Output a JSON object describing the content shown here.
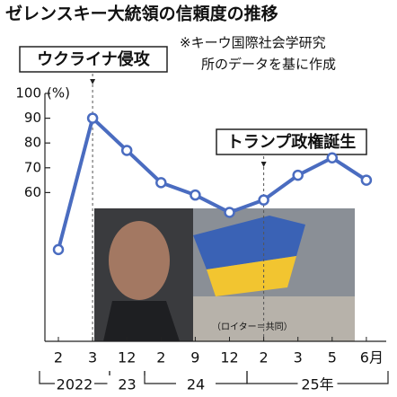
{
  "chart_data": {
    "type": "line",
    "title": "ゼレンスキー大統領の信頼度の推移",
    "note": [
      "※キーウ国際社会学研究",
      "所のデータを基に作成"
    ],
    "y_unit": "(%)",
    "annotations": [
      "ウクライナ侵攻",
      "トランプ政権誕生"
    ],
    "photo_credit": "（ロイター＝共同）",
    "categories": [
      "2",
      "3",
      "12",
      "2",
      "9",
      "12",
      "2",
      "3",
      "5",
      "6月"
    ],
    "years": [
      "2022",
      "23",
      "24",
      "25年"
    ],
    "series": [
      {
        "name": "信頼度",
        "color": "#4a6cc0",
        "values": [
          37,
          90,
          77,
          64,
          59,
          52,
          57,
          67,
          74,
          65
        ]
      }
    ],
    "ylim": [
      0,
      100
    ],
    "yticks": [
      60,
      70,
      80,
      90,
      100
    ]
  }
}
